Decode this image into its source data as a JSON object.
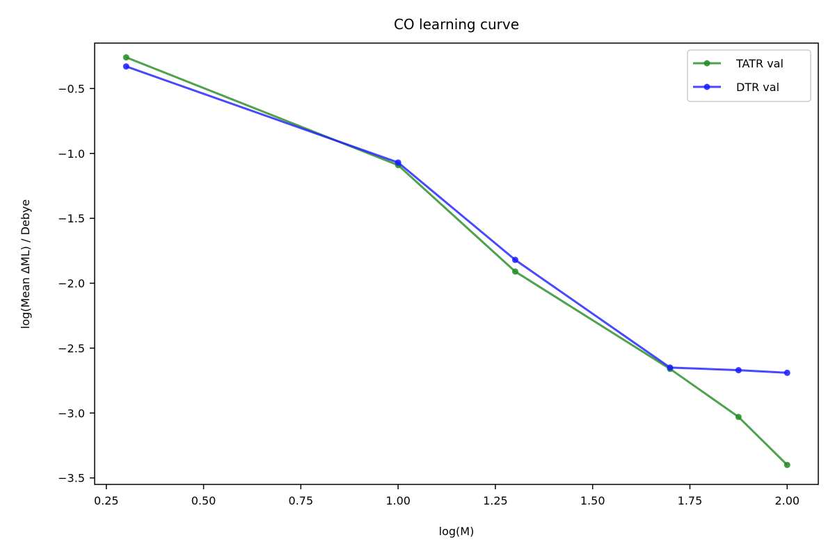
{
  "chart_data": {
    "type": "line",
    "title": "CO learning curve",
    "xlabel": "log(M)",
    "ylabel": "log(Mean ΔML) / Debye",
    "xlim": [
      0.22,
      2.08
    ],
    "ylim": [
      -3.55,
      -0.15
    ],
    "xticks": [
      0.25,
      0.5,
      0.75,
      1.0,
      1.25,
      1.5,
      1.75,
      2.0
    ],
    "xtick_labels": [
      "0.25",
      "0.50",
      "0.75",
      "1.00",
      "1.25",
      "1.50",
      "1.75",
      "2.00"
    ],
    "yticks": [
      -0.5,
      -1.0,
      -1.5,
      -2.0,
      -2.5,
      -3.0,
      -3.5
    ],
    "ytick_labels": [
      "−0.5",
      "−1.0",
      "−1.5",
      "−2.0",
      "−2.5",
      "−3.0",
      "−3.5"
    ],
    "grid": false,
    "legend_position": "top-right",
    "series": [
      {
        "name": "TATR val",
        "color": "#228b22",
        "x": [
          0.301,
          1.0,
          1.301,
          1.699,
          1.875,
          2.0
        ],
        "y": [
          -0.26,
          -1.09,
          -1.91,
          -2.66,
          -3.03,
          -3.4
        ]
      },
      {
        "name": "DTR val",
        "color": "#1a1aff",
        "x": [
          0.301,
          1.0,
          1.301,
          1.699,
          1.875,
          2.0
        ],
        "y": [
          -0.33,
          -1.07,
          -1.82,
          -2.65,
          -2.67,
          -2.69
        ]
      }
    ]
  }
}
